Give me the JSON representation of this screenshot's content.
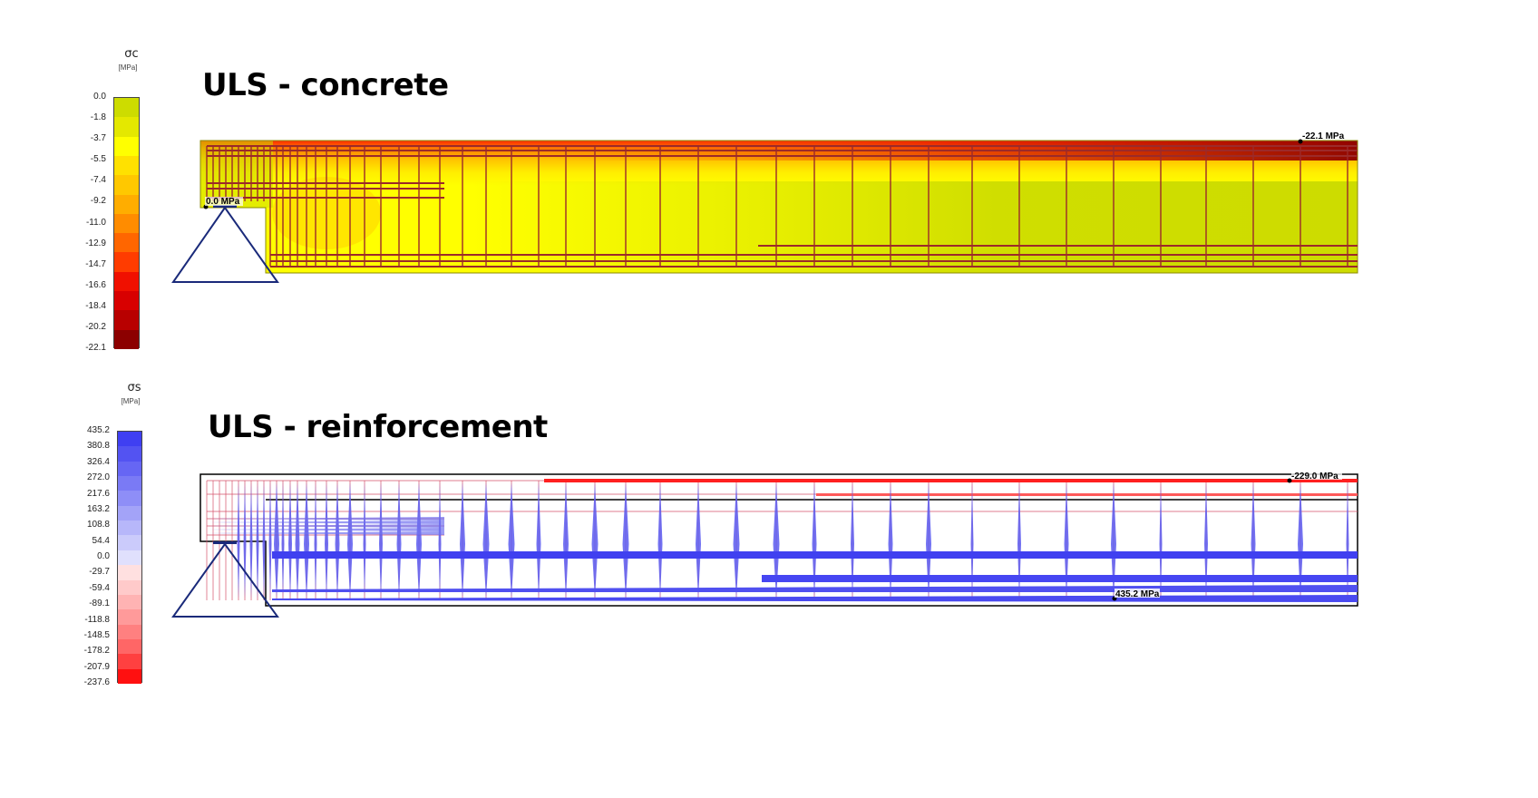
{
  "concrete_panel": {
    "title": "ULS - concrete",
    "legend": {
      "symbol": "σc",
      "unit": "[MPa]",
      "ticks": [
        "0.0",
        "-1.8",
        "-3.7",
        "-5.5",
        "-7.4",
        "-9.2",
        "-11.0",
        "-12.9",
        "-14.7",
        "-16.6",
        "-18.4",
        "-20.2",
        "-22.1"
      ],
      "colors": [
        "#cddc00",
        "#e4e800",
        "#ffff00",
        "#ffe100",
        "#ffc800",
        "#ffad00",
        "#ff8c00",
        "#ff6600",
        "#ff3c00",
        "#f01000",
        "#d80000",
        "#b80000",
        "#8c0000"
      ]
    },
    "annotations": {
      "max_label": "-22.1 MPa",
      "min_label": "0.0 MPa"
    }
  },
  "reinforcement_panel": {
    "title": "ULS - reinforcement",
    "legend": {
      "symbol": "σs",
      "unit": "[MPa]",
      "ticks": [
        "435.2",
        "380.8",
        "326.4",
        "272.0",
        "217.6",
        "163.2",
        "108.8",
        "54.4",
        "0.0",
        "-29.7",
        "-59.4",
        "-89.1",
        "-118.8",
        "-148.5",
        "-178.2",
        "-207.9",
        "-237.6"
      ],
      "colors": [
        "#3f3ff2",
        "#5353f2",
        "#6666f4",
        "#7a7af5",
        "#8e8ef7",
        "#a3a3f8",
        "#b7b7fa",
        "#cbcbfb",
        "#e0e0fd",
        "#ffe0e0",
        "#ffcaca",
        "#ffb3b3",
        "#ff9a9a",
        "#ff8080",
        "#ff6666",
        "#ff4040",
        "#ff1010"
      ]
    },
    "annotations": {
      "compression_label": "-229.0 MPa",
      "tension_label": "435.2 MPa"
    }
  }
}
